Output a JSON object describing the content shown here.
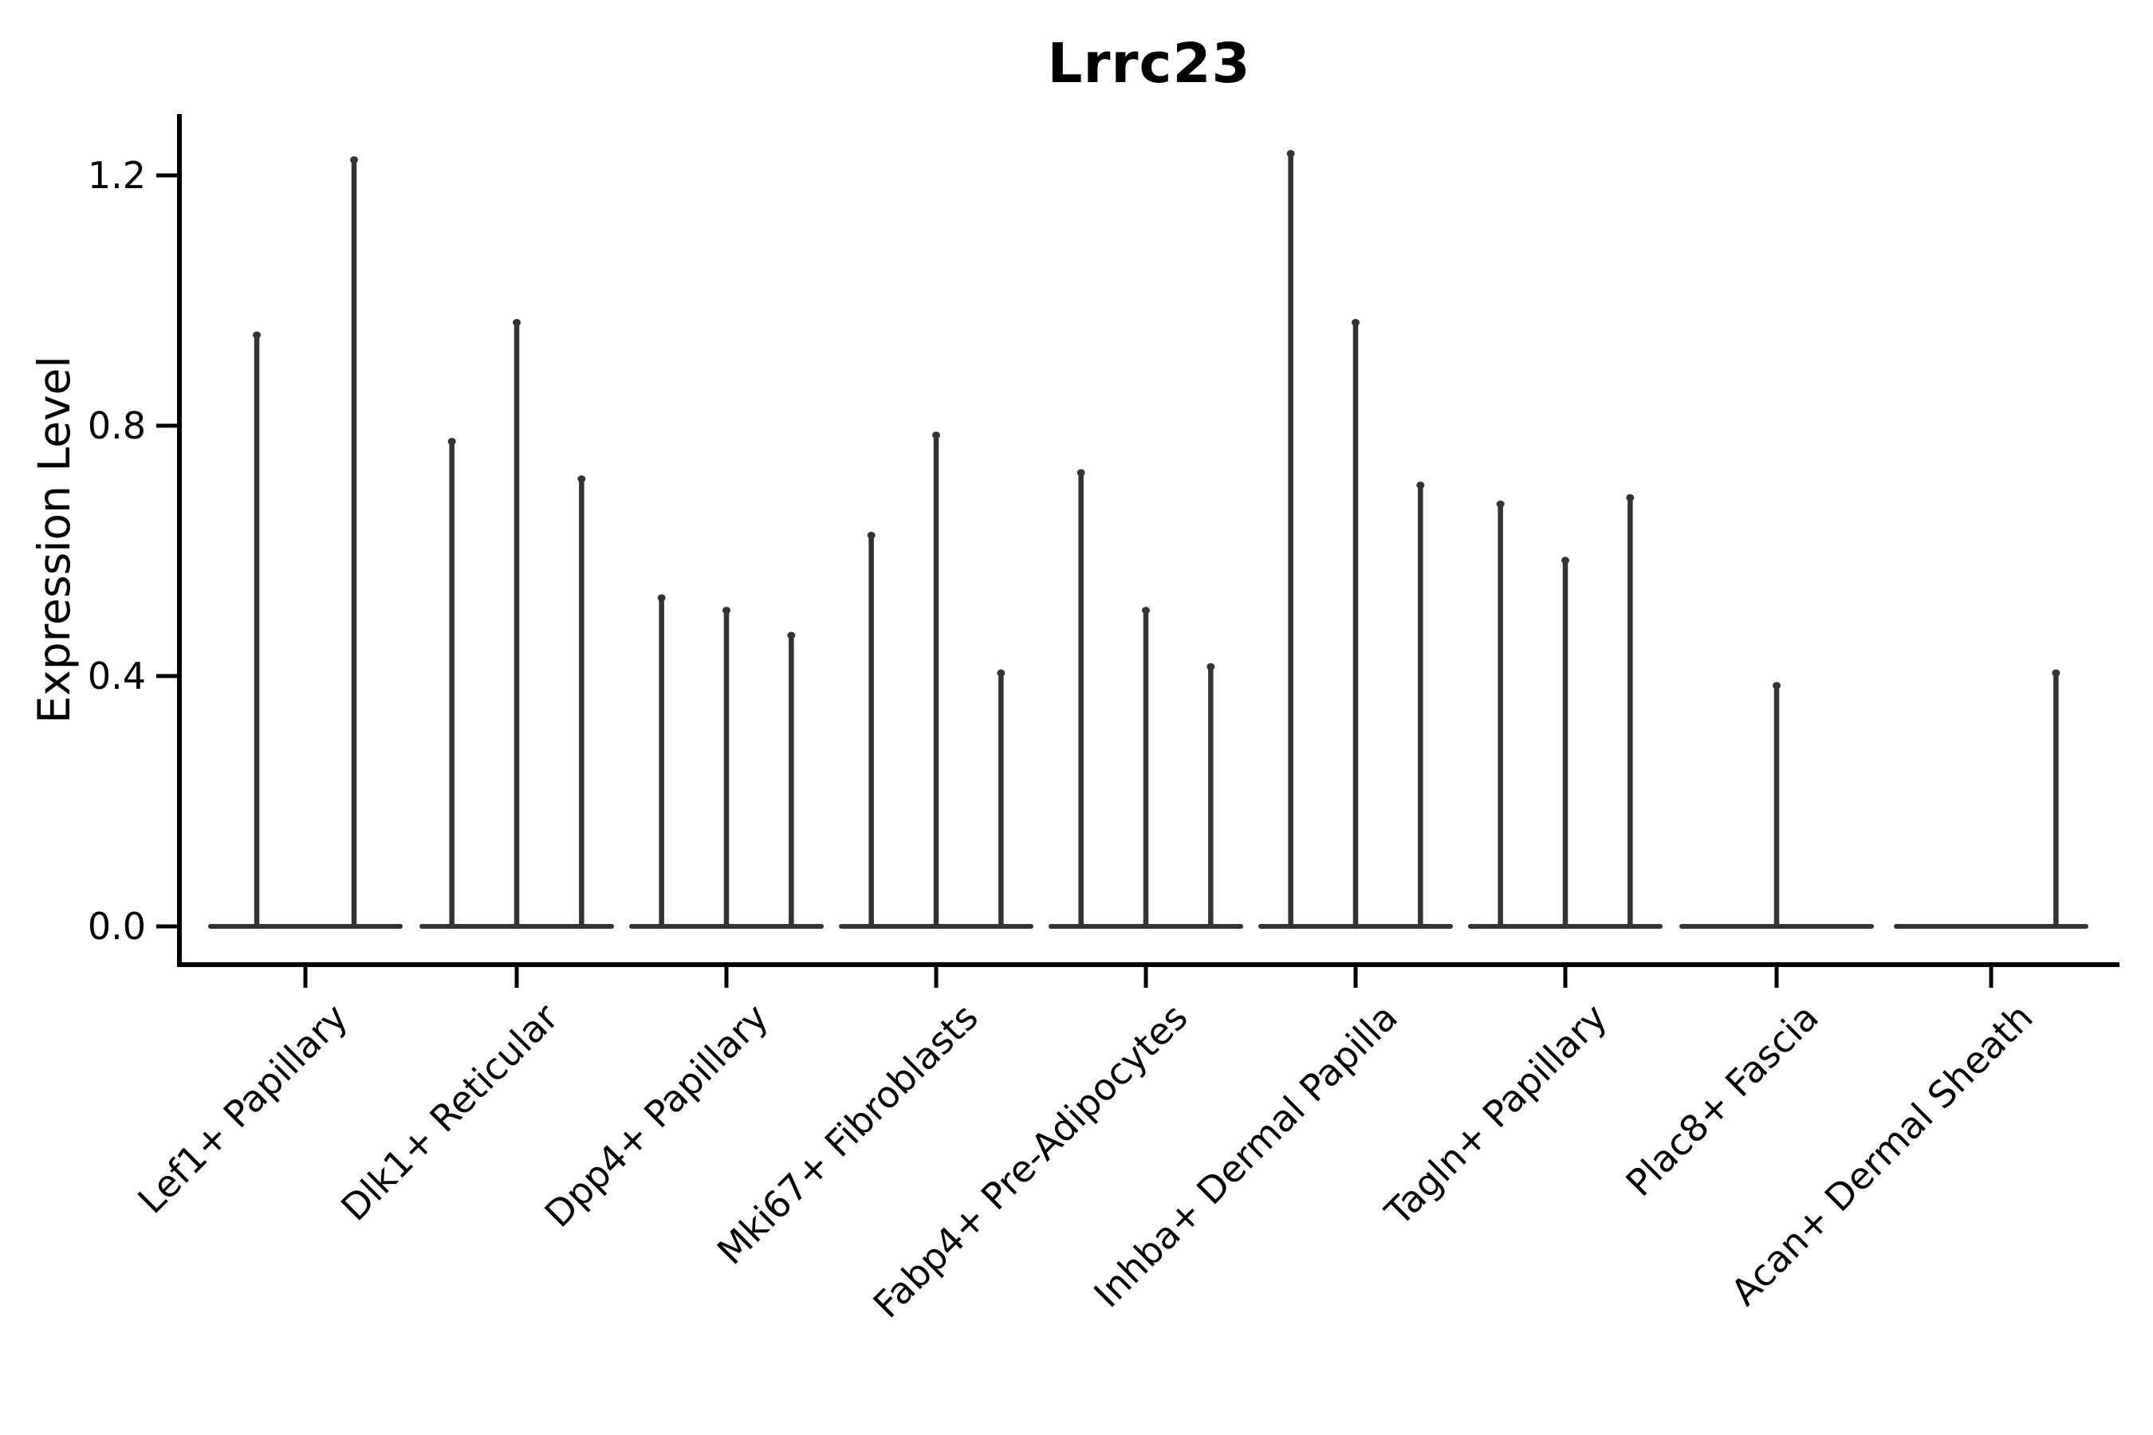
{
  "title": "Lrrc23",
  "y_axis": {
    "label": "Expression Level",
    "tick_labels": [
      "1.2",
      "0.8",
      "0.4",
      "0.0"
    ]
  },
  "x_axis": {
    "tick_labels": [
      "Lef1+ Papillary",
      "Dlk1+ Reticular",
      "Dpp4+ Papillary",
      "Mki67+ Fibroblasts",
      "Fabp4+ Pre-Adipocytes",
      "Inhba+ Dermal Papilla",
      "Tagln+ Papillary",
      "Plac8+ Fascia",
      "Acan+ Dermal Sheath"
    ]
  },
  "colors": {
    "background": "#ffffff",
    "violin_stroke": "#333333",
    "axis": "#000000",
    "text": "#000000"
  },
  "chart_data": {
    "type": "violin",
    "title": "Lrrc23",
    "xlabel": "",
    "ylabel": "Expression Level",
    "ylim": [
      0,
      1.28
    ],
    "yticks": [
      1.2,
      0.8,
      0.4,
      0.0
    ],
    "grid": false,
    "legend": "none",
    "categories": [
      "Lef1+ Papillary",
      "Dlk1+ Reticular",
      "Dpp4+ Papillary",
      "Mki67+ Fibroblasts",
      "Fabp4+ Pre-Adipocytes",
      "Inhba+ Dermal Papilla",
      "Tagln+ Papillary",
      "Plac8+ Fascia",
      "Acan+ Dermal Sheath"
    ],
    "violin_max_expression": [
      [
        0.95,
        1.23
      ],
      [
        0.78,
        0.97,
        0.72
      ],
      [
        0.53,
        0.51,
        0.47
      ],
      [
        0.63,
        0.79,
        0.41
      ],
      [
        0.73,
        0.51,
        0.42
      ],
      [
        1.24,
        0.97,
        0.71
      ],
      [
        0.68,
        0.59,
        0.69
      ],
      [
        0.0,
        0.39,
        0.0
      ],
      [
        0.0,
        0.0,
        0.41
      ]
    ]
  }
}
